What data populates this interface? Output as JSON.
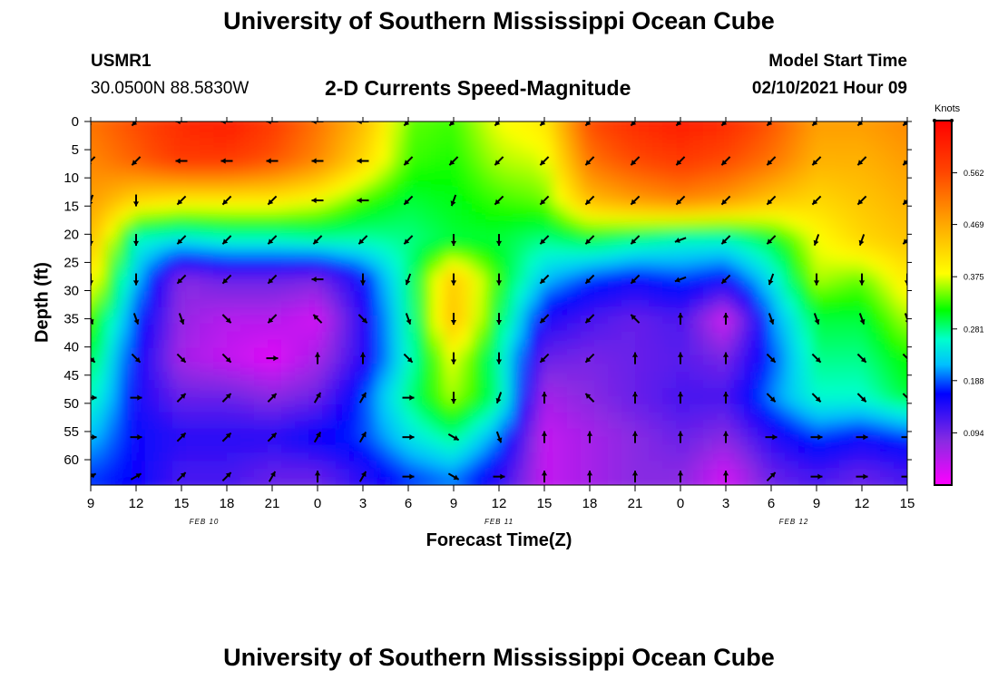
{
  "header": {
    "title": "University of Southern Mississippi Ocean Cube",
    "station_id": "USMR1",
    "station_coords": "30.0500N 88.5830W",
    "model_start_label": "Model Start Time",
    "model_start_value": "02/10/2021 Hour 09"
  },
  "footer": {
    "title": "University of Southern Mississippi Ocean Cube"
  },
  "colors": {
    "background": "#ffffff",
    "arrow": "#000000",
    "palette": [
      "#ff00ff",
      "#8a2be2",
      "#0000ff",
      "#00bfff",
      "#00ffcc",
      "#00ff00",
      "#ffff00",
      "#ffa500",
      "#ff4500",
      "#ff0000"
    ]
  },
  "chart_data": {
    "type": "heatmap",
    "title": "2-D Currents Speed-Magnitude",
    "xlabel": "Forecast Time(Z)",
    "ylabel": "Depth (ft)",
    "colorbar_label": "Knots",
    "colorbar_ticks": [
      "0.562",
      "0.469",
      "0.375",
      "0.281",
      "0.188",
      "0.094"
    ],
    "colorbar_range": [
      0,
      0.656
    ],
    "x_ticks": [
      "9",
      "12",
      "15",
      "18",
      "21",
      "0",
      "3",
      "6",
      "9",
      "12",
      "15",
      "18",
      "21",
      "0",
      "3",
      "6",
      "9",
      "12",
      "15"
    ],
    "date_labels": [
      {
        "label": "FEB 10",
        "tick_index": 2.5
      },
      {
        "label": "FEB 11",
        "tick_index": 9
      },
      {
        "label": "FEB 12",
        "tick_index": 15.5
      }
    ],
    "y_ticks": [
      0,
      5,
      10,
      15,
      20,
      25,
      30,
      35,
      40,
      45,
      50,
      55,
      60
    ],
    "y_range": [
      0,
      64.5
    ],
    "x_range_hours": [
      0,
      54
    ],
    "depth_levels": [
      0,
      7,
      14,
      21,
      28,
      35,
      42,
      49,
      56,
      63
    ],
    "speed_grid_hours": [
      0,
      3,
      6,
      9,
      12,
      15,
      18,
      21,
      24,
      27,
      30,
      33,
      36,
      39,
      42,
      45,
      48,
      51,
      54
    ],
    "speed_grid": [
      [
        0.52,
        0.56,
        0.6,
        0.62,
        0.58,
        0.52,
        0.45,
        0.34,
        0.33,
        0.38,
        0.4,
        0.56,
        0.6,
        0.62,
        0.6,
        0.55,
        0.48,
        0.48,
        0.5
      ],
      [
        0.5,
        0.54,
        0.58,
        0.58,
        0.55,
        0.5,
        0.42,
        0.33,
        0.32,
        0.36,
        0.37,
        0.52,
        0.56,
        0.58,
        0.56,
        0.52,
        0.46,
        0.46,
        0.48
      ],
      [
        0.48,
        0.42,
        0.4,
        0.4,
        0.4,
        0.38,
        0.33,
        0.3,
        0.31,
        0.33,
        0.34,
        0.45,
        0.48,
        0.5,
        0.48,
        0.44,
        0.42,
        0.44,
        0.46
      ],
      [
        0.45,
        0.26,
        0.24,
        0.26,
        0.26,
        0.27,
        0.27,
        0.28,
        0.3,
        0.3,
        0.28,
        0.3,
        0.28,
        0.26,
        0.26,
        0.3,
        0.38,
        0.42,
        0.44
      ],
      [
        0.4,
        0.22,
        0.08,
        0.1,
        0.1,
        0.09,
        0.16,
        0.28,
        0.44,
        0.32,
        0.22,
        0.18,
        0.16,
        0.18,
        0.16,
        0.24,
        0.36,
        0.34,
        0.4
      ],
      [
        0.34,
        0.18,
        0.07,
        0.05,
        0.05,
        0.03,
        0.14,
        0.27,
        0.45,
        0.3,
        0.15,
        0.12,
        0.1,
        0.12,
        0.03,
        0.2,
        0.3,
        0.3,
        0.36
      ],
      [
        0.3,
        0.16,
        0.06,
        0.04,
        0.02,
        0.06,
        0.14,
        0.26,
        0.38,
        0.27,
        0.1,
        0.09,
        0.1,
        0.11,
        0.09,
        0.18,
        0.28,
        0.28,
        0.32
      ],
      [
        0.27,
        0.15,
        0.1,
        0.1,
        0.08,
        0.1,
        0.18,
        0.28,
        0.36,
        0.28,
        0.06,
        0.08,
        0.1,
        0.12,
        0.12,
        0.2,
        0.26,
        0.26,
        0.3
      ],
      [
        0.22,
        0.16,
        0.14,
        0.14,
        0.14,
        0.16,
        0.18,
        0.24,
        0.28,
        0.2,
        0.04,
        0.06,
        0.08,
        0.1,
        0.08,
        0.14,
        0.18,
        0.16,
        0.18
      ],
      [
        0.18,
        0.16,
        0.12,
        0.12,
        0.1,
        0.1,
        0.14,
        0.18,
        0.2,
        0.14,
        0.04,
        0.06,
        0.08,
        0.08,
        0.03,
        0.1,
        0.12,
        0.1,
        0.12
      ]
    ],
    "arrow_hours": [
      0,
      3,
      6,
      9,
      12,
      15,
      18,
      21,
      24,
      27,
      30,
      33,
      36,
      39,
      42,
      45,
      48,
      51,
      54
    ],
    "arrow_depths": [
      0,
      7,
      14,
      21,
      28,
      35,
      42,
      49,
      56,
      63
    ],
    "arrow_directions_deg": [
      [
        225,
        225,
        270,
        270,
        270,
        270,
        270,
        225,
        225,
        225,
        225,
        225,
        225,
        225,
        225,
        225,
        225,
        225,
        225
      ],
      [
        225,
        225,
        270,
        270,
        270,
        270,
        270,
        225,
        225,
        225,
        225,
        225,
        225,
        225,
        225,
        225,
        225,
        225,
        225
      ],
      [
        200,
        180,
        225,
        225,
        225,
        270,
        270,
        225,
        200,
        225,
        225,
        225,
        225,
        225,
        225,
        225,
        225,
        225,
        225
      ],
      [
        180,
        180,
        225,
        225,
        225,
        225,
        225,
        225,
        180,
        180,
        225,
        225,
        225,
        250,
        225,
        225,
        200,
        200,
        225
      ],
      [
        180,
        180,
        225,
        225,
        225,
        270,
        180,
        200,
        180,
        180,
        225,
        225,
        225,
        250,
        225,
        200,
        180,
        180,
        180
      ],
      [
        160,
        160,
        160,
        135,
        225,
        315,
        135,
        160,
        180,
        180,
        225,
        225,
        315,
        0,
        0,
        160,
        160,
        160,
        160
      ],
      [
        135,
        135,
        135,
        135,
        90,
        0,
        0,
        135,
        180,
        180,
        225,
        225,
        0,
        0,
        0,
        135,
        135,
        135,
        135
      ],
      [
        90,
        90,
        45,
        45,
        45,
        30,
        30,
        90,
        180,
        200,
        0,
        315,
        0,
        0,
        0,
        135,
        135,
        135,
        135
      ],
      [
        90,
        90,
        45,
        45,
        45,
        30,
        30,
        90,
        120,
        160,
        0,
        0,
        0,
        0,
        0,
        90,
        90,
        90,
        90
      ],
      [
        60,
        60,
        45,
        45,
        30,
        0,
        30,
        90,
        120,
        90,
        0,
        0,
        0,
        0,
        0,
        45,
        90,
        90,
        90
      ]
    ]
  }
}
